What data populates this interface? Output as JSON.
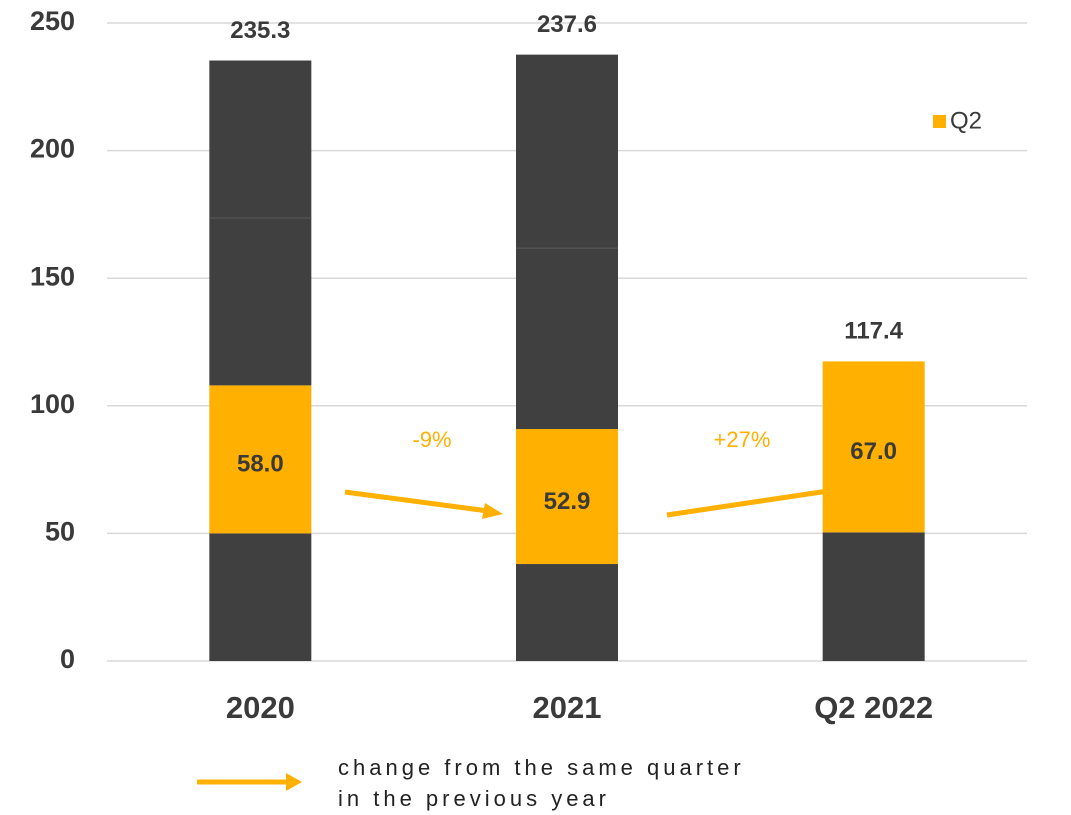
{
  "chart_data": {
    "type": "stacked_bar",
    "categories": [
      "2020",
      "2021",
      "Q2 2022"
    ],
    "series": [
      {
        "color": "#404040",
        "values": [
          50.0,
          38.0,
          50.4
        ]
      },
      {
        "name": "Q2",
        "color": "#ffb000",
        "values": [
          58.0,
          52.9,
          67.0
        ],
        "value_labels": [
          "58.0",
          "52.9",
          "67.0"
        ]
      },
      {
        "color": "#404040",
        "values": [
          65.6,
          70.9,
          null
        ]
      },
      {
        "color": "#404040",
        "values": [
          61.7,
          75.8,
          null
        ]
      }
    ],
    "totals": [
      235.3,
      237.6,
      117.4
    ],
    "ylim": [
      0,
      250
    ],
    "yticks": [
      0,
      50,
      100,
      150,
      200,
      250
    ],
    "grid": true,
    "legend": "top-right",
    "annotations": [
      "-9%",
      "+27%"
    ],
    "footnote": [
      "change from the same quarter",
      "in the previous year"
    ]
  }
}
